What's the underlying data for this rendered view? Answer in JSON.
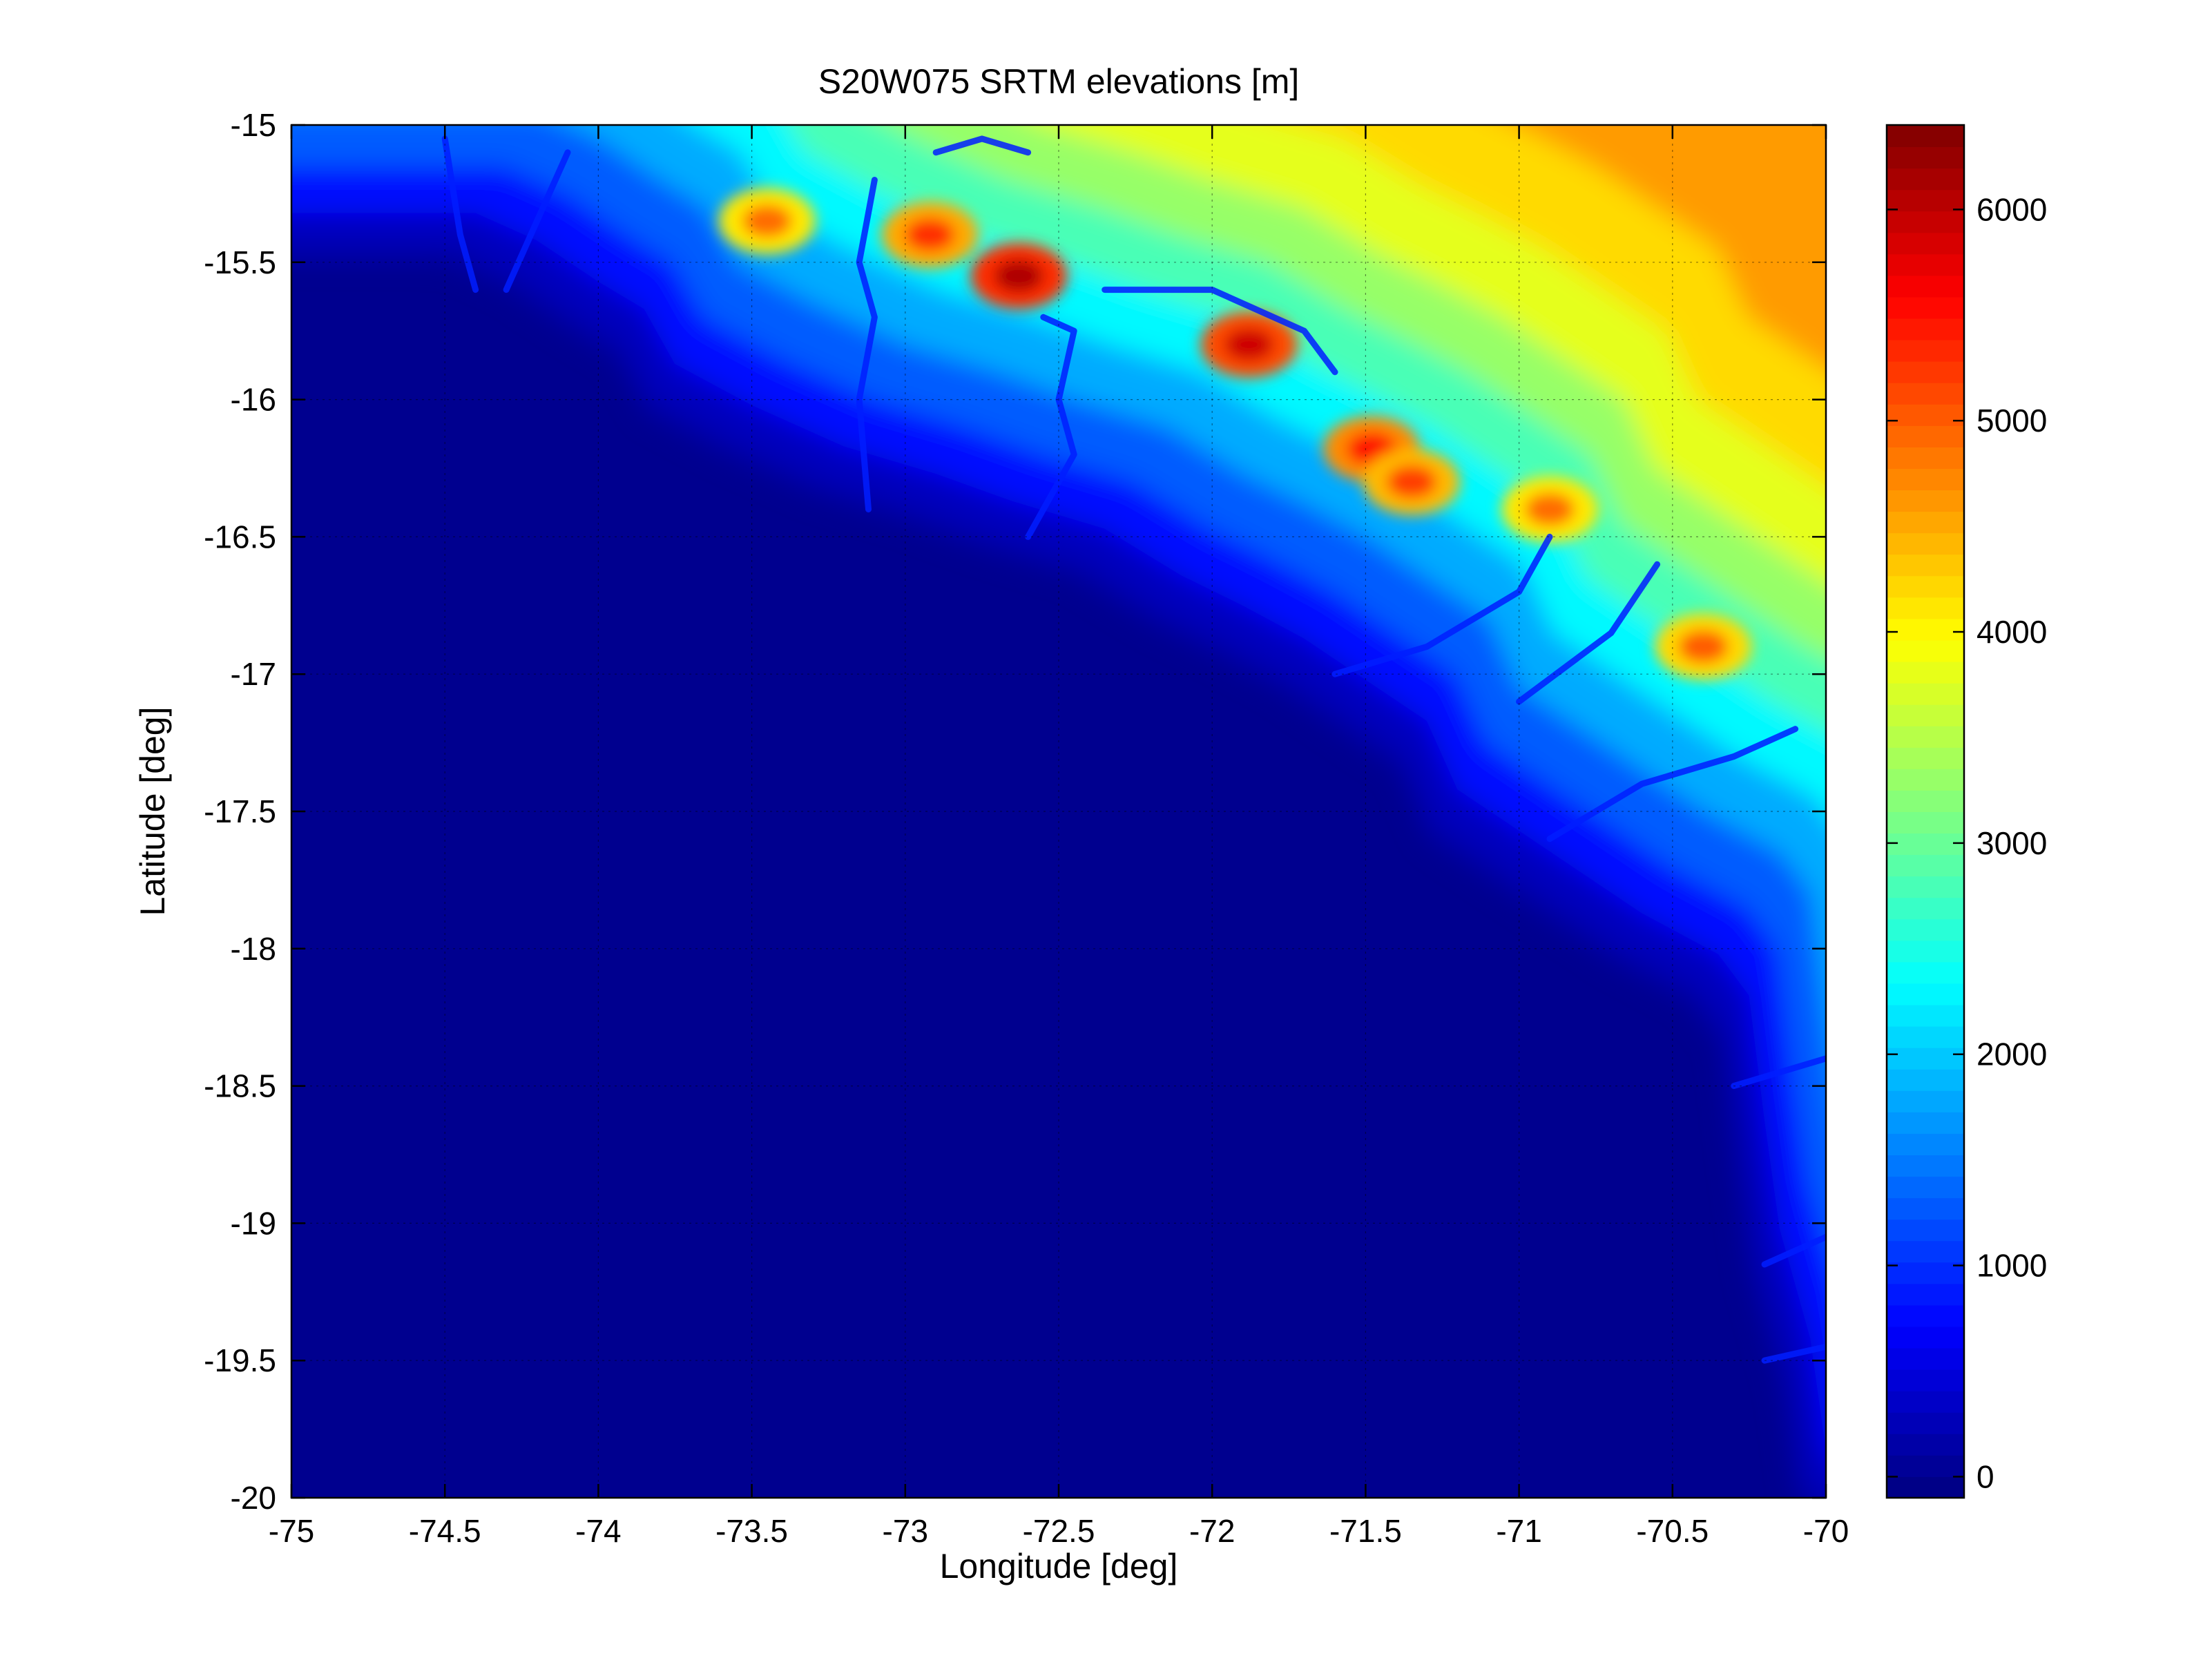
{
  "chart_data": {
    "type": "heatmap",
    "title": "S20W075 SRTM elevations [m]",
    "xlabel": "Longitude [deg]",
    "ylabel": "Latitude [deg]",
    "xlim": [
      -75,
      -70
    ],
    "ylim": [
      -20,
      -15
    ],
    "x_ticks": [
      -75,
      -74.5,
      -74,
      -73.5,
      -73,
      -72.5,
      -72,
      -71.5,
      -71,
      -70.5,
      -70
    ],
    "x_tick_labels": [
      "-75",
      "-74.5",
      "-74",
      "-73.5",
      "-73",
      "-72.5",
      "-72",
      "-71.5",
      "-71",
      "-70.5",
      "-70"
    ],
    "y_ticks": [
      -15,
      -15.5,
      -16,
      -16.5,
      -17,
      -17.5,
      -18,
      -18.5,
      -19,
      -19.5,
      -20
    ],
    "y_tick_labels": [
      "-15",
      "-15.5",
      "-16",
      "-16.5",
      "-17",
      "-17.5",
      "-18",
      "-18.5",
      "-19",
      "-19.5",
      "-20"
    ],
    "grid": true,
    "colormap": "jet",
    "colorbar": {
      "range": [
        -100,
        6400
      ],
      "ticks": [
        0,
        1000,
        2000,
        3000,
        4000,
        5000,
        6000
      ],
      "tick_labels": [
        "0",
        "1000",
        "2000",
        "3000",
        "4000",
        "5000",
        "6000"
      ],
      "placement": "right"
    },
    "coastline": [
      [
        -74.95,
        -15.5
      ],
      [
        -74.5,
        -15.5
      ],
      [
        -74.3,
        -15.6
      ],
      [
        -74.1,
        -15.75
      ],
      [
        -73.95,
        -15.85
      ],
      [
        -73.85,
        -16.05
      ],
      [
        -73.6,
        -16.2
      ],
      [
        -73.3,
        -16.35
      ],
      [
        -73.0,
        -16.45
      ],
      [
        -72.75,
        -16.55
      ],
      [
        -72.45,
        -16.65
      ],
      [
        -72.2,
        -16.82
      ],
      [
        -72.0,
        -16.93
      ],
      [
        -71.8,
        -17.05
      ],
      [
        -71.6,
        -17.2
      ],
      [
        -71.4,
        -17.35
      ],
      [
        -71.3,
        -17.6
      ],
      [
        -71.1,
        -17.75
      ],
      [
        -70.9,
        -17.9
      ],
      [
        -70.7,
        -18.05
      ],
      [
        -70.45,
        -18.2
      ],
      [
        -70.35,
        -18.35
      ],
      [
        -70.3,
        -18.8
      ],
      [
        -70.25,
        -19.2
      ],
      [
        -70.15,
        -19.6
      ],
      [
        -70.1,
        -20.0
      ]
    ],
    "elevation_zones": [
      {
        "offset_deg": 0.06,
        "elev": 300
      },
      {
        "offset_deg": 0.18,
        "elev": 800
      },
      {
        "offset_deg": 0.35,
        "elev": 1300
      },
      {
        "offset_deg": 0.55,
        "elev": 1800
      },
      {
        "offset_deg": 0.75,
        "elev": 2300
      },
      {
        "offset_deg": 0.95,
        "elev": 2800
      },
      {
        "offset_deg": 1.15,
        "elev": 3300
      },
      {
        "offset_deg": 1.35,
        "elev": 3800
      },
      {
        "offset_deg": 1.6,
        "elev": 4200
      },
      {
        "offset_deg": 1.9,
        "elev": 4600
      }
    ],
    "peaks": [
      {
        "lon": -72.63,
        "lat": -15.55,
        "elev": 6100
      },
      {
        "lon": -71.88,
        "lat": -15.8,
        "elev": 5900
      },
      {
        "lon": -72.92,
        "lat": -15.4,
        "elev": 5300
      },
      {
        "lon": -71.48,
        "lat": -16.18,
        "elev": 5500
      },
      {
        "lon": -73.45,
        "lat": -15.35,
        "elev": 4900
      },
      {
        "lon": -71.35,
        "lat": -16.3,
        "elev": 5200
      },
      {
        "lon": -70.9,
        "lat": -16.4,
        "elev": 4900
      },
      {
        "lon": -70.4,
        "lat": -16.9,
        "elev": 5000
      }
    ],
    "rivers": [
      [
        [
          -73.1,
          -15.2
        ],
        [
          -73.15,
          -15.5
        ],
        [
          -73.1,
          -15.7
        ],
        [
          -73.15,
          -16.0
        ],
        [
          -73.12,
          -16.4
        ]
      ],
      [
        [
          -72.55,
          -15.7
        ],
        [
          -72.45,
          -15.75
        ],
        [
          -72.5,
          -16.0
        ],
        [
          -72.45,
          -16.2
        ],
        [
          -72.6,
          -16.5
        ]
      ],
      [
        [
          -72.35,
          -15.6
        ],
        [
          -72.0,
          -15.6
        ],
        [
          -71.7,
          -15.75
        ],
        [
          -71.6,
          -15.9
        ]
      ],
      [
        [
          -74.5,
          -15.05
        ],
        [
          -74.45,
          -15.4
        ],
        [
          -74.4,
          -15.6
        ]
      ],
      [
        [
          -74.1,
          -15.1
        ],
        [
          -74.2,
          -15.35
        ],
        [
          -74.3,
          -15.6
        ]
      ],
      [
        [
          -72.9,
          -15.1
        ],
        [
          -72.75,
          -15.05
        ],
        [
          -72.6,
          -15.1
        ]
      ],
      [
        [
          -70.9,
          -16.5
        ],
        [
          -71.0,
          -16.7
        ],
        [
          -71.3,
          -16.9
        ],
        [
          -71.6,
          -17.0
        ]
      ],
      [
        [
          -70.55,
          -16.6
        ],
        [
          -70.7,
          -16.85
        ],
        [
          -71.0,
          -17.1
        ]
      ],
      [
        [
          -70.1,
          -17.2
        ],
        [
          -70.3,
          -17.3
        ],
        [
          -70.6,
          -17.4
        ],
        [
          -70.9,
          -17.6
        ]
      ],
      [
        [
          -70.0,
          -18.4
        ],
        [
          -70.3,
          -18.5
        ]
      ],
      [
        [
          -70.0,
          -19.05
        ],
        [
          -70.2,
          -19.15
        ]
      ],
      [
        [
          -70.0,
          -19.45
        ],
        [
          -70.2,
          -19.5
        ]
      ]
    ]
  }
}
